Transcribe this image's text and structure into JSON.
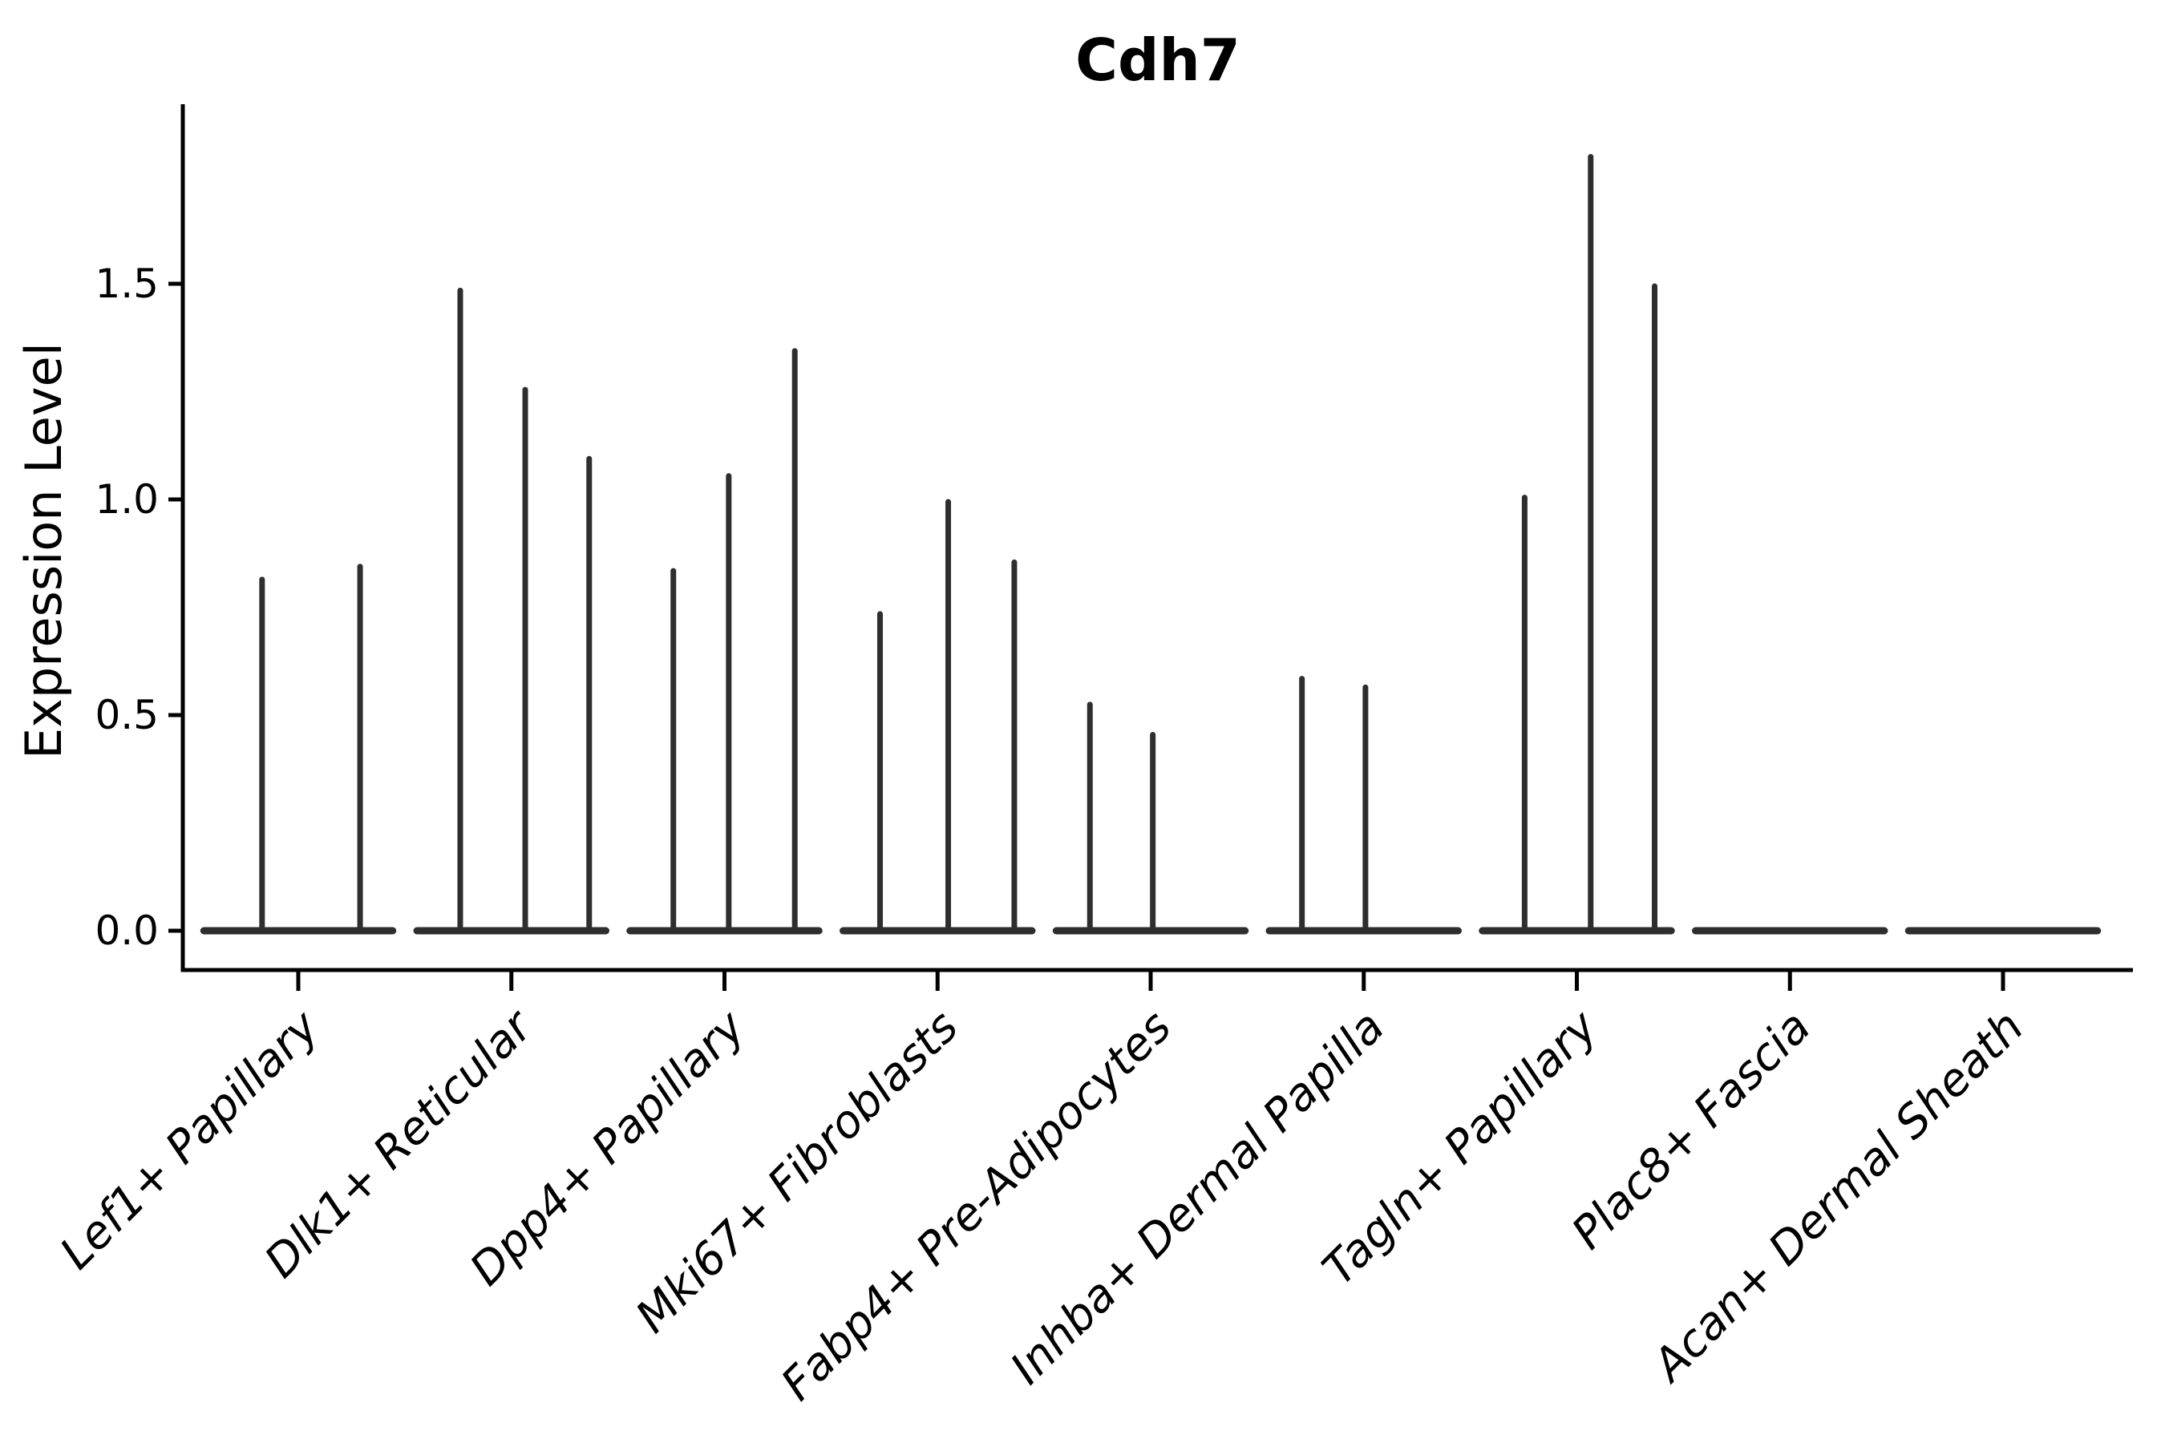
{
  "colors": {
    "ink": "#000000",
    "violin": "#2e2e2e",
    "background": "#ffffff"
  },
  "chart_data": {
    "type": "violin",
    "title": "Cdh7",
    "xlabel": "",
    "ylabel": "Expression Level",
    "ylim": [
      -0.09,
      1.92
    ],
    "yticks": [
      0.0,
      0.5,
      1.0,
      1.5
    ],
    "ytick_labels": [
      "0.0",
      "0.5",
      "1.0",
      "1.5"
    ],
    "grid": false,
    "legend": null,
    "categories": [
      "Lef1+ Papillary",
      "Dlk1+ Reticular",
      "Dpp4+ Papillary",
      "Mki67+ Fibroblasts",
      "Fabp4+ Pre-Adipocytes",
      "Inhba+ Dermal Papilla",
      "Tagln+ Papillary",
      "Plac8+ Fascia",
      "Acan+ Dermal Sheath"
    ],
    "series": [
      {
        "name": "Lef1+ Papillary",
        "needles": [
          {
            "pos": -0.17,
            "value": 0.82
          },
          {
            "pos": 0.29,
            "value": 0.85
          }
        ]
      },
      {
        "name": "Dlk1+ Reticular",
        "needles": [
          {
            "pos": -0.24,
            "value": 1.49
          },
          {
            "pos": 0.065,
            "value": 1.26
          },
          {
            "pos": 0.365,
            "value": 1.1
          }
        ]
      },
      {
        "name": "Dpp4+ Papillary",
        "needles": [
          {
            "pos": -0.24,
            "value": 0.84
          },
          {
            "pos": 0.02,
            "value": 1.06
          },
          {
            "pos": 0.33,
            "value": 1.35
          }
        ]
      },
      {
        "name": "Mki67+ Fibroblasts",
        "needles": [
          {
            "pos": -0.27,
            "value": 0.74
          },
          {
            "pos": 0.05,
            "value": 1.0
          },
          {
            "pos": 0.36,
            "value": 0.86
          }
        ]
      },
      {
        "name": "Fabp4+ Pre-Adipocytes",
        "needles": [
          {
            "pos": -0.285,
            "value": 0.53
          },
          {
            "pos": 0.01,
            "value": 0.46
          }
        ]
      },
      {
        "name": "Inhba+ Dermal Papilla",
        "needles": [
          {
            "pos": -0.29,
            "value": 0.59
          },
          {
            "pos": 0.008,
            "value": 0.57
          }
        ]
      },
      {
        "name": "Tagln+ Papillary",
        "needles": [
          {
            "pos": -0.245,
            "value": 1.01
          },
          {
            "pos": 0.065,
            "value": 1.8
          },
          {
            "pos": 0.365,
            "value": 1.5
          }
        ]
      },
      {
        "name": "Plac8+ Fascia",
        "needles": []
      },
      {
        "name": "Acan+ Dermal Sheath",
        "needles": []
      }
    ],
    "violin_base_halfwidth": 0.46,
    "note": "Collapsed violins: each cell type shows a flat bar at expression 0 with thin needle peaks at expressed values."
  }
}
